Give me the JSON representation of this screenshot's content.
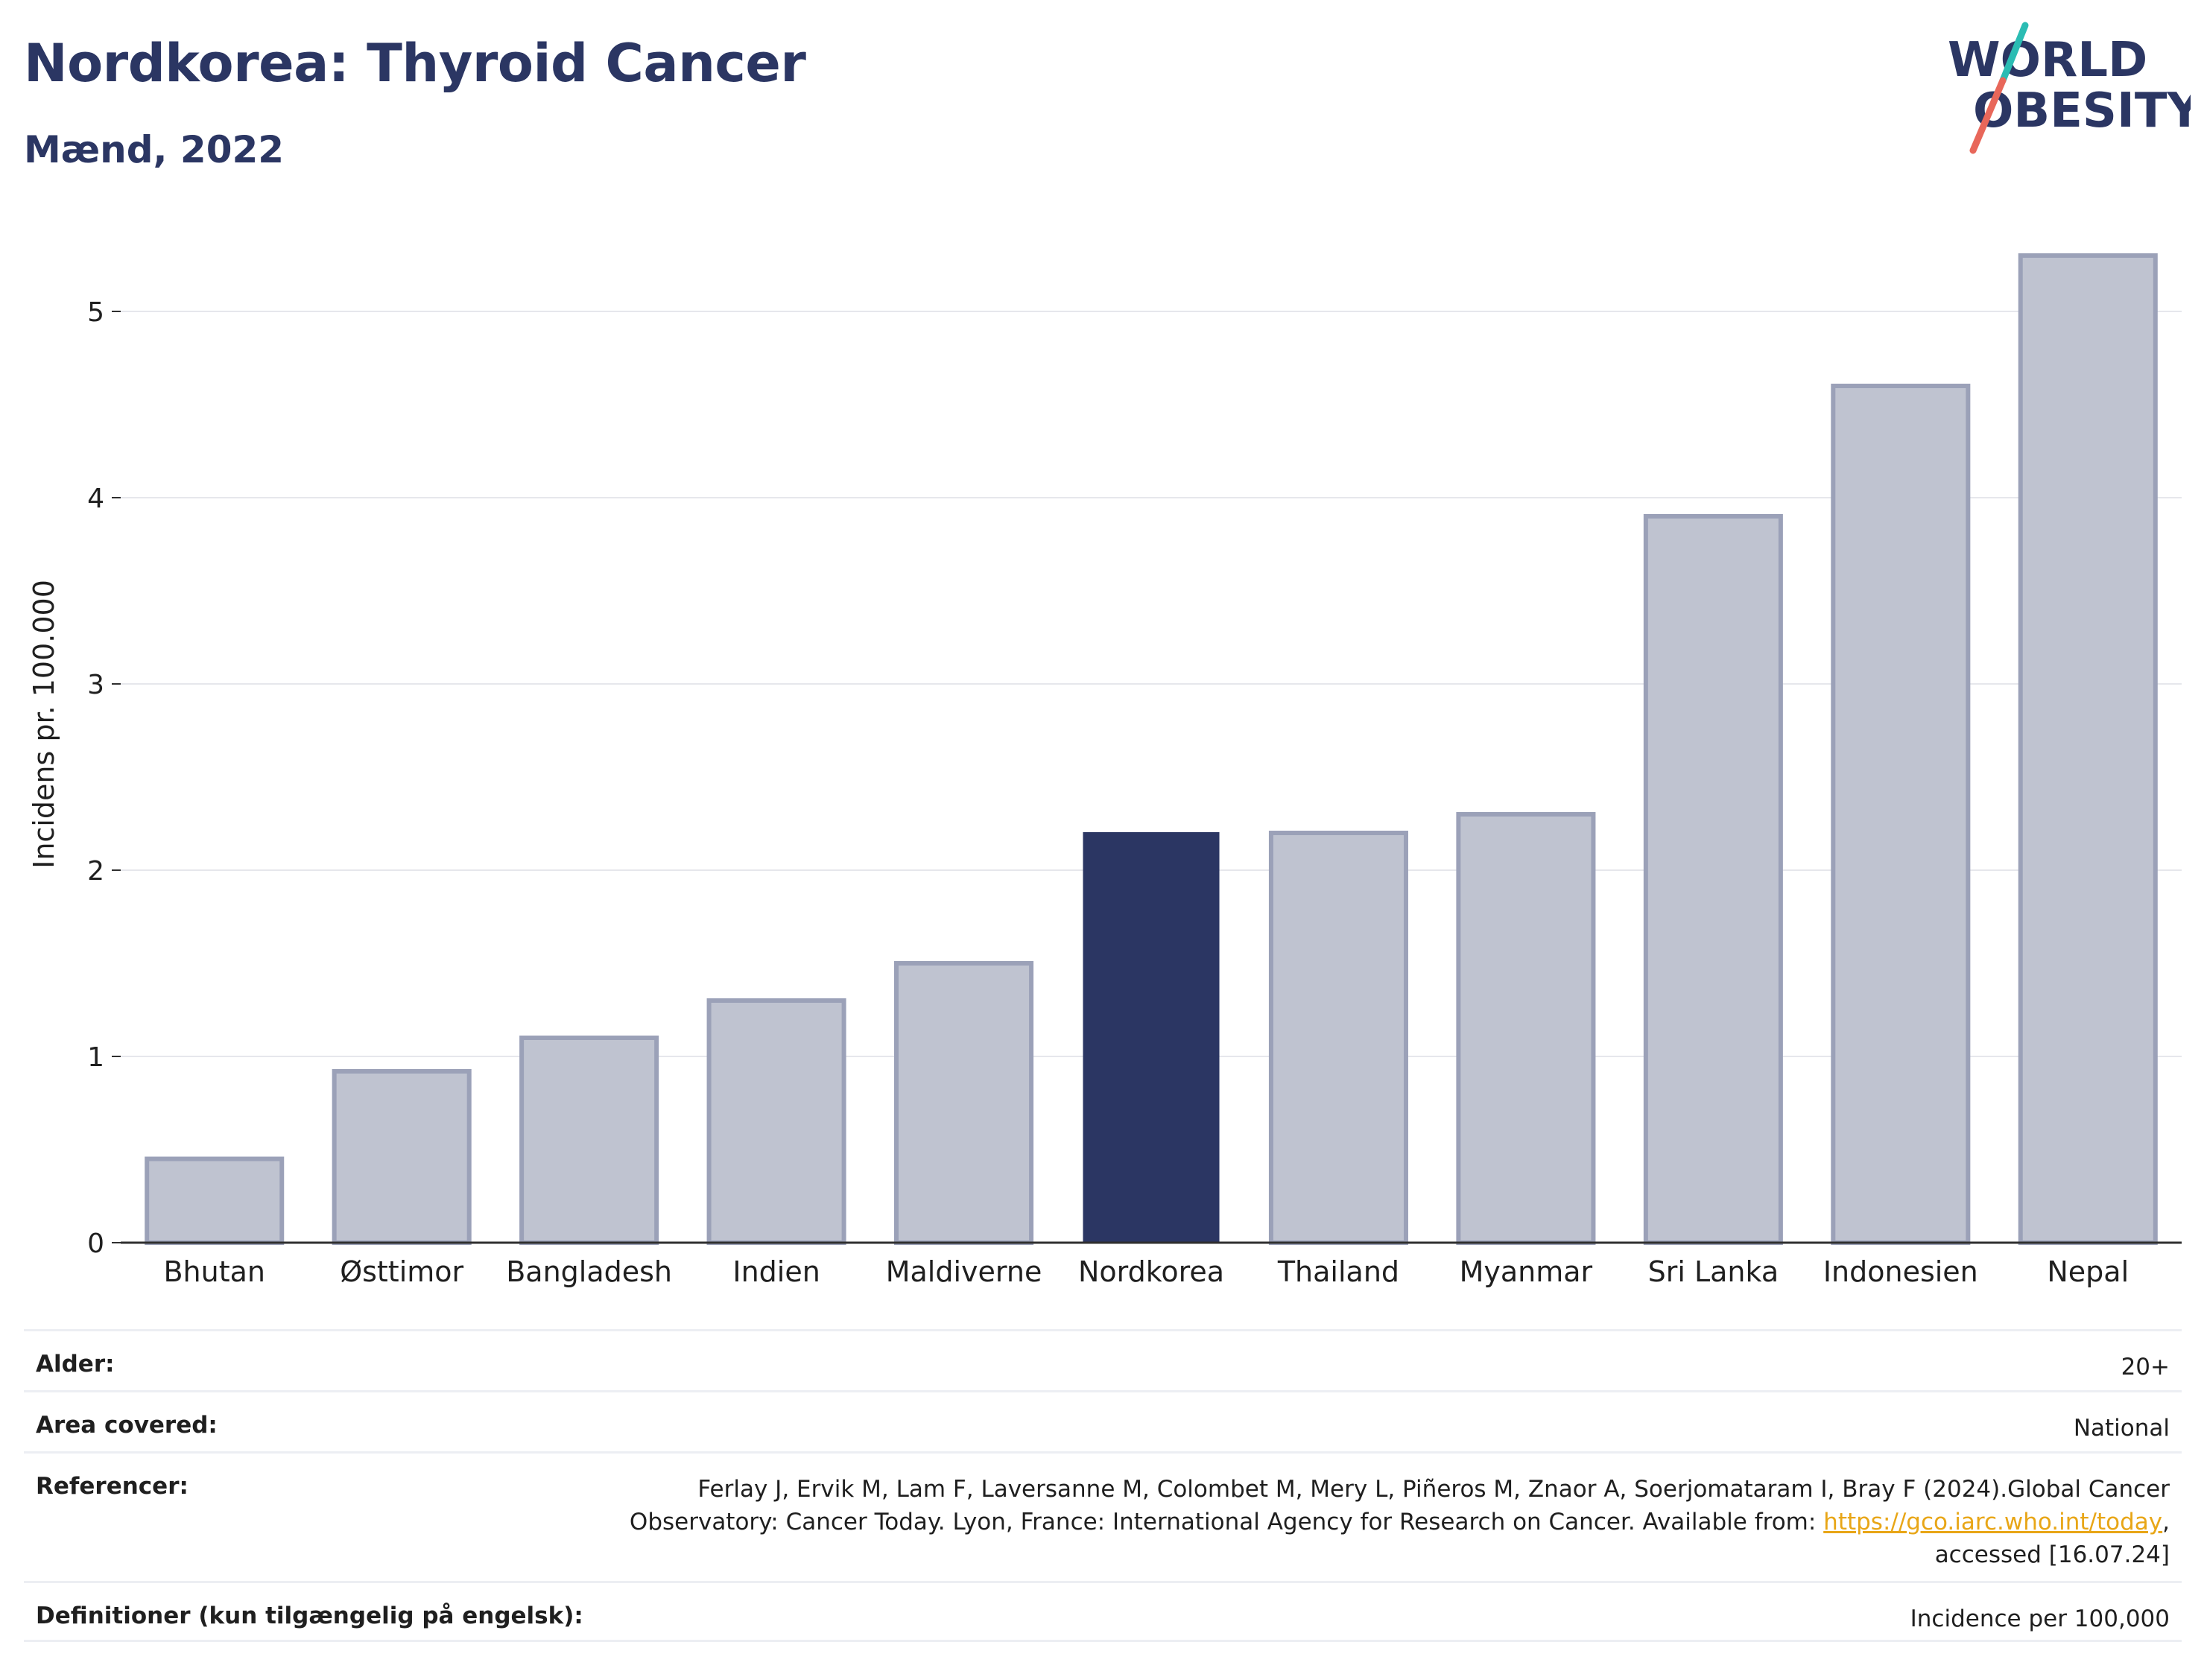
{
  "header": {
    "title": "Nordkorea: Thyroid Cancer",
    "subtitle": "Mænd, 2022"
  },
  "logo": {
    "line1": "WORLD",
    "line2": "OBESITY",
    "colors": {
      "text": "#2b3663",
      "slash_top": "#2bbcb3",
      "slash_bottom": "#e8675a"
    }
  },
  "chart_data": {
    "type": "bar",
    "categories": [
      "Bhutan",
      "Østtimor",
      "Bangladesh",
      "Indien",
      "Maldiverne",
      "Nordkorea",
      "Thailand",
      "Myanmar",
      "Sri Lanka",
      "Indonesien",
      "Nepal"
    ],
    "values": [
      0.45,
      0.92,
      1.1,
      1.3,
      1.5,
      2.2,
      2.2,
      2.3,
      3.9,
      4.6,
      5.3
    ],
    "highlight": "Nordkorea",
    "ylabel": "Incidens pr. 100.000",
    "xlabel": "",
    "ylim": [
      0,
      5.45
    ],
    "yticks": [
      0,
      1,
      2,
      3,
      4,
      5
    ],
    "grid": true,
    "colors": {
      "bar": "#bfc3d0",
      "bar_outline": "#9ba1b8",
      "highlight": "#2b3663",
      "axis": "#2f2f2f",
      "grid": "#e6e7ec"
    }
  },
  "meta": {
    "age_label": "Alder:",
    "age_value": "20+",
    "area_label": "Area covered:",
    "area_value": "National",
    "ref_label": "Referencer:",
    "ref_text_1": "Ferlay J, Ervik M, Lam F, Laversanne M, Colombet M, Mery L, Piñeros M, Znaor A, Soerjomataram I, Bray F (2024).Global Cancer Observatory: Cancer Today. Lyon, France: International Agency for Research on Cancer. Available from: ",
    "ref_link": "https://gco.iarc.who.int/today",
    "ref_text_2": ", accessed [16.07.24]",
    "def_label": "Definitioner (kun tilgængelig på engelsk):",
    "def_value": "Incidence per 100,000"
  }
}
